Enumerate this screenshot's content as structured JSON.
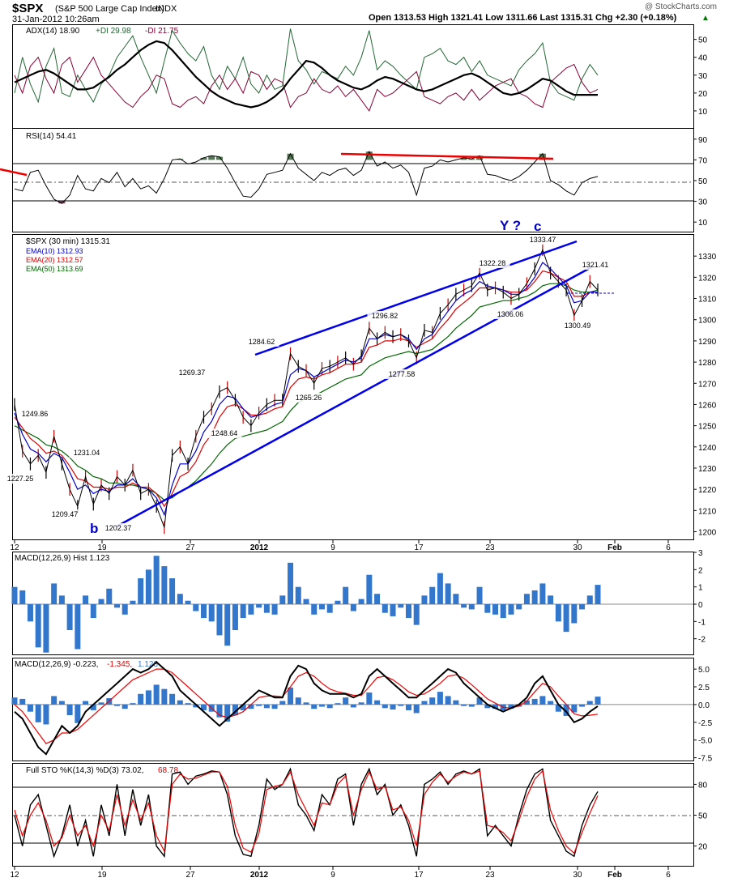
{
  "header": {
    "title": "$SPX",
    "subtitle": "(S&P 500 Large Cap Index)",
    "exchange": "INDX",
    "date": "31-Jan-2012 10:26am",
    "watermark": "@ StockCharts.com",
    "ohlc": "Open 1313.53   High 1321.41   Low 1311.66   Last 1315.31   Chg +2.30 (+0.18%)",
    "chg_arrow": "▲"
  },
  "colors": {
    "price": "#000000",
    "ema10": "#0000cc",
    "ema20": "#dd0000",
    "ema50": "#006600",
    "trendline": "#0000ee",
    "resistance": "#ee0000",
    "hist": "#3377cc",
    "plus_di": "#226633",
    "minus_di": "#880033",
    "rsi_fill": "#557755"
  },
  "adx_panel": {
    "label_main": "ADX(14) 18.90",
    "label_plus": "+DI 29.98",
    "label_minus": "-DI 21.75",
    "ticks": [
      "50",
      "40",
      "30",
      "20",
      "10"
    ]
  },
  "rsi_panel": {
    "label": "RSI(14) 54.41",
    "ticks": [
      "90",
      "70",
      "50",
      "30",
      "10"
    ]
  },
  "price_panel": {
    "label": "$SPX (30 min) 1315.31",
    "legend": [
      "EMA(10) 1312.93",
      "EMA(20) 1312.57",
      "EMA(50) 1313.69"
    ],
    "ticks": [
      "1330",
      "1320",
      "1310",
      "1300",
      "1290",
      "1280",
      "1270",
      "1260",
      "1250",
      "1240",
      "1230",
      "1220",
      "1210",
      "1200"
    ],
    "wave_labels": {
      "b": "b",
      "y": "Y ?",
      "c": "c"
    },
    "annotations": [
      "1249.86",
      "1227.25",
      "1231.04",
      "1209.47",
      "1202.37",
      "1269.37",
      "1248.64",
      "1284.62",
      "1265.26",
      "1296.82",
      "1277.58",
      "1322.28",
      "1306.06",
      "1333.47",
      "1321.41",
      "1300.49"
    ]
  },
  "date_axis": [
    "12",
    "19",
    "27",
    "2012",
    "9",
    "17",
    "23",
    "30",
    "Feb",
    "6"
  ],
  "macd_hist_panel": {
    "label": "MACD(12,26,9) Hist 1.123",
    "ticks": [
      "3",
      "2",
      "1",
      "0",
      "-1",
      "-2"
    ]
  },
  "macd_panel": {
    "label_main": "MACD(12,26,9) -0.223,",
    "label_signal": "-1.345,",
    "label_hist": "1.123",
    "ticks": [
      "5.0",
      "2.5",
      "0.0",
      "-2.5",
      "-5.0",
      "-7.5"
    ]
  },
  "sto_panel": {
    "label_main": "Full STO %K(14,3) %D(3) 73.02,",
    "label_d": "68.78",
    "ticks": [
      "80",
      "50",
      "20"
    ]
  },
  "chart_data": {
    "type": "line",
    "title": "$SPX (S&P 500 Large Cap Index) INDX",
    "timeframe": "30 min",
    "ylim": [
      1196,
      1340
    ],
    "x_ticks": [
      "12",
      "19",
      "27",
      "2012",
      "9",
      "17",
      "23",
      "30",
      "Feb",
      "6"
    ],
    "pivots": [
      {
        "label": "1249.86",
        "value": 1249.86
      },
      {
        "label": "1227.25",
        "value": 1227.25
      },
      {
        "label": "1231.04",
        "value": 1231.04
      },
      {
        "label": "1209.47",
        "value": 1209.47
      },
      {
        "label": "1202.37",
        "value": 1202.37
      },
      {
        "label": "1269.37",
        "value": 1269.37
      },
      {
        "label": "1248.64",
        "value": 1248.64
      },
      {
        "label": "1284.62",
        "value": 1284.62
      },
      {
        "label": "1265.26",
        "value": 1265.26
      },
      {
        "label": "1296.82",
        "value": 1296.82
      },
      {
        "label": "1277.58",
        "value": 1277.58
      },
      {
        "label": "1322.28",
        "value": 1322.28
      },
      {
        "label": "1306.06",
        "value": 1306.06
      },
      {
        "label": "1333.47",
        "value": 1333.47
      },
      {
        "label": "1321.41",
        "value": 1321.41
      },
      {
        "label": "1300.49",
        "value": 1300.49
      }
    ],
    "series": [
      {
        "name": "$SPX",
        "values": [
          1260,
          1238,
          1232,
          1236,
          1228,
          1245,
          1232,
          1220,
          1212,
          1226,
          1213,
          1222,
          1218,
          1226,
          1222,
          1229,
          1218,
          1220,
          1212,
          1202,
          1236,
          1240,
          1232,
          1245,
          1254,
          1258,
          1266,
          1268,
          1262,
          1254,
          1250,
          1256,
          1260,
          1262,
          1262,
          1284,
          1278,
          1276,
          1270,
          1277,
          1278,
          1280,
          1282,
          1279,
          1283,
          1296,
          1291,
          1294,
          1292,
          1293,
          1290,
          1282,
          1295,
          1294,
          1303,
          1307,
          1312,
          1314,
          1316,
          1322,
          1314,
          1315,
          1313,
          1310,
          1312,
          1317,
          1324,
          1333,
          1322,
          1318,
          1314,
          1302,
          1309,
          1318,
          1314
        ]
      },
      {
        "name": "EMA(10)",
        "values": [
          1256,
          1246,
          1239,
          1237,
          1233,
          1237,
          1235,
          1228,
          1220,
          1222,
          1218,
          1220,
          1219,
          1222,
          1222,
          1225,
          1221,
          1220,
          1216,
          1208,
          1222,
          1232,
          1232,
          1238,
          1247,
          1252,
          1260,
          1264,
          1263,
          1258,
          1254,
          1255,
          1258,
          1260,
          1261,
          1274,
          1277,
          1276,
          1273,
          1275,
          1277,
          1279,
          1281,
          1280,
          1282,
          1291,
          1291,
          1293,
          1292,
          1293,
          1291,
          1286,
          1291,
          1293,
          1299,
          1304,
          1309,
          1312,
          1314,
          1318,
          1316,
          1315,
          1314,
          1312,
          1312,
          1315,
          1320,
          1327,
          1324,
          1320,
          1316,
          1308,
          1309,
          1313,
          1313
        ]
      },
      {
        "name": "EMA(20)",
        "values": [
          1254,
          1249,
          1244,
          1241,
          1237,
          1238,
          1236,
          1231,
          1225,
          1224,
          1221,
          1221,
          1220,
          1221,
          1221,
          1223,
          1221,
          1221,
          1218,
          1212,
          1218,
          1226,
          1228,
          1233,
          1241,
          1246,
          1254,
          1259,
          1260,
          1258,
          1255,
          1255,
          1256,
          1258,
          1259,
          1268,
          1272,
          1273,
          1272,
          1274,
          1275,
          1277,
          1279,
          1279,
          1280,
          1287,
          1288,
          1290,
          1290,
          1291,
          1290,
          1287,
          1289,
          1291,
          1296,
          1300,
          1305,
          1308,
          1311,
          1315,
          1315,
          1315,
          1314,
          1313,
          1313,
          1314,
          1318,
          1323,
          1322,
          1320,
          1318,
          1311,
          1311,
          1313,
          1313
        ]
      },
      {
        "name": "EMA(50)",
        "values": [
          1250,
          1248,
          1246,
          1244,
          1241,
          1240,
          1238,
          1235,
          1231,
          1229,
          1226,
          1225,
          1223,
          1223,
          1222,
          1222,
          1221,
          1220,
          1218,
          1215,
          1216,
          1219,
          1221,
          1224,
          1228,
          1232,
          1237,
          1241,
          1244,
          1245,
          1246,
          1247,
          1248,
          1250,
          1252,
          1257,
          1261,
          1263,
          1264,
          1266,
          1268,
          1270,
          1272,
          1273,
          1274,
          1278,
          1280,
          1282,
          1283,
          1284,
          1285,
          1284,
          1285,
          1286,
          1289,
          1292,
          1296,
          1299,
          1302,
          1306,
          1307,
          1308,
          1309,
          1309,
          1310,
          1311,
          1313,
          1316,
          1317,
          1317,
          1316,
          1314,
          1313,
          1313,
          1314
        ]
      }
    ],
    "adx": {
      "ADX(14)": [
        26,
        28,
        30,
        32,
        33,
        31,
        28,
        25,
        22,
        22,
        23,
        26,
        29,
        33,
        36,
        40,
        44,
        47,
        49,
        48,
        44,
        39,
        34,
        29,
        25,
        21,
        18,
        16,
        14,
        13,
        12,
        13,
        15,
        18,
        22,
        28,
        33,
        38,
        37,
        34,
        30,
        27,
        25,
        23,
        22,
        24,
        27,
        29,
        28,
        26,
        24,
        22,
        21,
        22,
        24,
        26,
        28,
        30,
        31,
        29,
        26,
        23,
        20,
        19,
        20,
        22,
        25,
        28,
        27,
        24,
        21,
        19,
        19,
        19,
        19
      ],
      "+DI": [
        20,
        40,
        25,
        15,
        35,
        45,
        20,
        18,
        30,
        22,
        15,
        25,
        30,
        40,
        46,
        52,
        40,
        30,
        20,
        38,
        55,
        48,
        42,
        38,
        46,
        30,
        22,
        35,
        28,
        40,
        25,
        20,
        30,
        22,
        24,
        56,
        38,
        33,
        25,
        32,
        30,
        28,
        35,
        30,
        40,
        55,
        33,
        38,
        35,
        30,
        26,
        22,
        40,
        42,
        45,
        38,
        36,
        40,
        32,
        38,
        30,
        28,
        26,
        24,
        33,
        38,
        42,
        48,
        26,
        20,
        18,
        16,
        28,
        36,
        30
      ],
      "-DI": [
        30,
        20,
        35,
        40,
        28,
        20,
        36,
        40,
        26,
        33,
        40,
        30,
        25,
        20,
        15,
        12,
        18,
        22,
        30,
        28,
        14,
        12,
        16,
        18,
        14,
        24,
        30,
        22,
        28,
        20,
        32,
        30,
        22,
        28,
        26,
        12,
        18,
        20,
        28,
        22,
        20,
        24,
        18,
        22,
        16,
        10,
        22,
        18,
        20,
        24,
        28,
        32,
        18,
        16,
        14,
        18,
        20,
        16,
        22,
        16,
        20,
        24,
        26,
        28,
        20,
        18,
        14,
        12,
        26,
        30,
        34,
        36,
        26,
        20,
        22
      ]
    },
    "rsi14": [
      42,
      40,
      58,
      60,
      45,
      32,
      28,
      36,
      55,
      42,
      40,
      52,
      48,
      58,
      44,
      52,
      42,
      45,
      38,
      52,
      70,
      71,
      66,
      68,
      72,
      74,
      73,
      62,
      48,
      35,
      34,
      42,
      56,
      58,
      60,
      76,
      62,
      56,
      50,
      58,
      55,
      60,
      62,
      55,
      60,
      78,
      64,
      68,
      62,
      65,
      58,
      36,
      62,
      64,
      70,
      68,
      70,
      72,
      71,
      74,
      56,
      55,
      52,
      50,
      54,
      60,
      68,
      76,
      50,
      46,
      40,
      36,
      48,
      52,
      54
    ],
    "macd_hist": [
      1.0,
      0.8,
      -1.0,
      -2.5,
      -2.8,
      1.2,
      0.5,
      -1.5,
      -2.6,
      0.5,
      -0.8,
      0.3,
      0.9,
      -0.2,
      -0.6,
      0.2,
      1.5,
      2.0,
      2.8,
      2.2,
      1.5,
      0.6,
      0.2,
      -0.4,
      -0.8,
      -1.0,
      -1.8,
      -2.4,
      -1.5,
      -0.8,
      -0.6,
      -0.2,
      -0.5,
      -0.6,
      0.5,
      2.4,
      1.0,
      0.3,
      -0.6,
      -0.3,
      -0.5,
      0.2,
      1.0,
      -0.4,
      0.3,
      1.7,
      0.6,
      -0.5,
      -0.7,
      -0.2,
      -0.8,
      -1.2,
      0.5,
      1.0,
      1.8,
      1.2,
      0.6,
      -0.2,
      -0.3,
      1.0,
      -0.5,
      -0.6,
      -0.8,
      -0.6,
      -0.3,
      0.6,
      0.8,
      1.2,
      0.5,
      -1.0,
      -1.6,
      -1.1,
      -0.3,
      0.5,
      1.12
    ],
    "macd": [
      -1,
      -2,
      -4,
      -6,
      -7,
      -5,
      -3,
      -4,
      -3,
      -1,
      0,
      1,
      2,
      3,
      4,
      5,
      4.5,
      5,
      6,
      5,
      4,
      2,
      1,
      0,
      -1,
      -2,
      -3,
      -2,
      -1,
      0,
      1,
      2,
      1.5,
      1,
      1,
      4,
      5.5,
      5,
      3,
      2,
      1.5,
      1.5,
      1.5,
      1,
      1.5,
      4,
      5,
      4,
      3,
      2,
      1,
      1,
      2,
      3,
      4,
      5,
      4.5,
      3,
      2,
      1,
      0,
      -0.5,
      -1,
      -0.5,
      0,
      1,
      3,
      4,
      2,
      0,
      -1,
      -2.5,
      -2,
      -1,
      -0.22
    ],
    "macd_signal": [
      0,
      -1,
      -2.5,
      -4,
      -5.5,
      -5,
      -4,
      -4,
      -3.5,
      -2.5,
      -1.5,
      -0.5,
      0.5,
      1.5,
      2.5,
      3.5,
      4,
      4.5,
      5,
      5,
      4.5,
      3.5,
      2.5,
      1.5,
      0.5,
      -0.5,
      -1.5,
      -1.8,
      -1.5,
      -1,
      0,
      1,
      1.2,
      1.2,
      1.1,
      2.5,
      4,
      4.5,
      4,
      3,
      2.2,
      1.8,
      1.6,
      1.3,
      1.3,
      2.5,
      3.8,
      4,
      3.5,
      2.7,
      1.8,
      1.3,
      1.5,
      2.2,
      3,
      4,
      4.2,
      3.7,
      2.8,
      1.8,
      0.8,
      0.2,
      -0.4,
      -0.5,
      -0.2,
      0.5,
      1.8,
      3,
      2.5,
      1.2,
      0,
      -1.3,
      -1.6,
      -1.5,
      -1.35
    ],
    "sto_k": [
      50,
      20,
      60,
      70,
      40,
      10,
      30,
      60,
      20,
      45,
      10,
      60,
      30,
      80,
      30,
      75,
      40,
      70,
      20,
      10,
      90,
      92,
      80,
      88,
      90,
      93,
      92,
      70,
      30,
      12,
      10,
      40,
      85,
      75,
      80,
      95,
      60,
      50,
      35,
      70,
      60,
      85,
      90,
      40,
      80,
      95,
      70,
      80,
      50,
      60,
      40,
      10,
      80,
      85,
      92,
      80,
      90,
      93,
      90,
      95,
      30,
      40,
      30,
      20,
      50,
      75,
      90,
      95,
      45,
      30,
      15,
      10,
      40,
      60,
      73
    ],
    "sto_d": [
      55,
      30,
      50,
      62,
      45,
      20,
      28,
      50,
      30,
      40,
      20,
      50,
      35,
      70,
      40,
      65,
      45,
      62,
      30,
      15,
      80,
      90,
      85,
      86,
      89,
      92,
      92,
      78,
      40,
      18,
      14,
      32,
      75,
      78,
      80,
      92,
      70,
      55,
      40,
      62,
      60,
      80,
      88,
      50,
      75,
      92,
      75,
      78,
      55,
      58,
      45,
      20,
      70,
      82,
      90,
      82,
      88,
      92,
      90,
      93,
      40,
      38,
      33,
      25,
      45,
      68,
      85,
      93,
      55,
      35,
      20,
      13,
      33,
      52,
      69
    ]
  }
}
